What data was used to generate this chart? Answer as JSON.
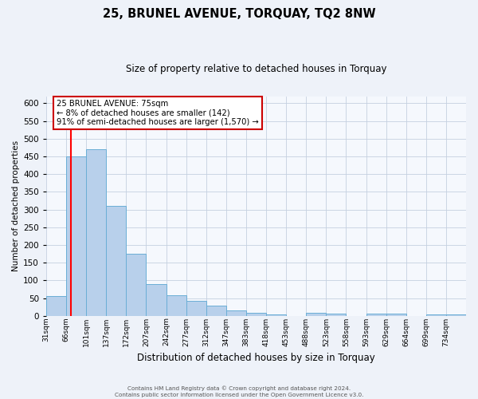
{
  "title": "25, BRUNEL AVENUE, TORQUAY, TQ2 8NW",
  "subtitle": "Size of property relative to detached houses in Torquay",
  "xlabel": "Distribution of detached houses by size in Torquay",
  "ylabel": "Number of detached properties",
  "bin_labels": [
    "31sqm",
    "66sqm",
    "101sqm",
    "137sqm",
    "172sqm",
    "207sqm",
    "242sqm",
    "277sqm",
    "312sqm",
    "347sqm",
    "383sqm",
    "418sqm",
    "453sqm",
    "488sqm",
    "523sqm",
    "558sqm",
    "593sqm",
    "629sqm",
    "664sqm",
    "699sqm",
    "734sqm"
  ],
  "bar_values": [
    55,
    450,
    470,
    310,
    175,
    90,
    58,
    42,
    30,
    15,
    8,
    5,
    0,
    8,
    6,
    0,
    6,
    6,
    0,
    5,
    4
  ],
  "bar_color": "#b8d0eb",
  "bar_edge_color": "#6aaed6",
  "red_line_x": 1.18,
  "ylim": [
    0,
    620
  ],
  "yticks": [
    0,
    50,
    100,
    150,
    200,
    250,
    300,
    350,
    400,
    450,
    500,
    550,
    600
  ],
  "annotation_title": "25 BRUNEL AVENUE: 75sqm",
  "annotation_line1": "← 8% of detached houses are smaller (142)",
  "annotation_line2": "91% of semi-detached houses are larger (1,570) →",
  "annotation_box_color": "#ffffff",
  "annotation_box_edge": "#cc0000",
  "footer1": "Contains HM Land Registry data © Crown copyright and database right 2024.",
  "footer2": "Contains public sector information licensed under the Open Government Licence v3.0.",
  "bg_color": "#eef2f9",
  "plot_bg_color": "#f5f8fd",
  "n_bars": 21
}
